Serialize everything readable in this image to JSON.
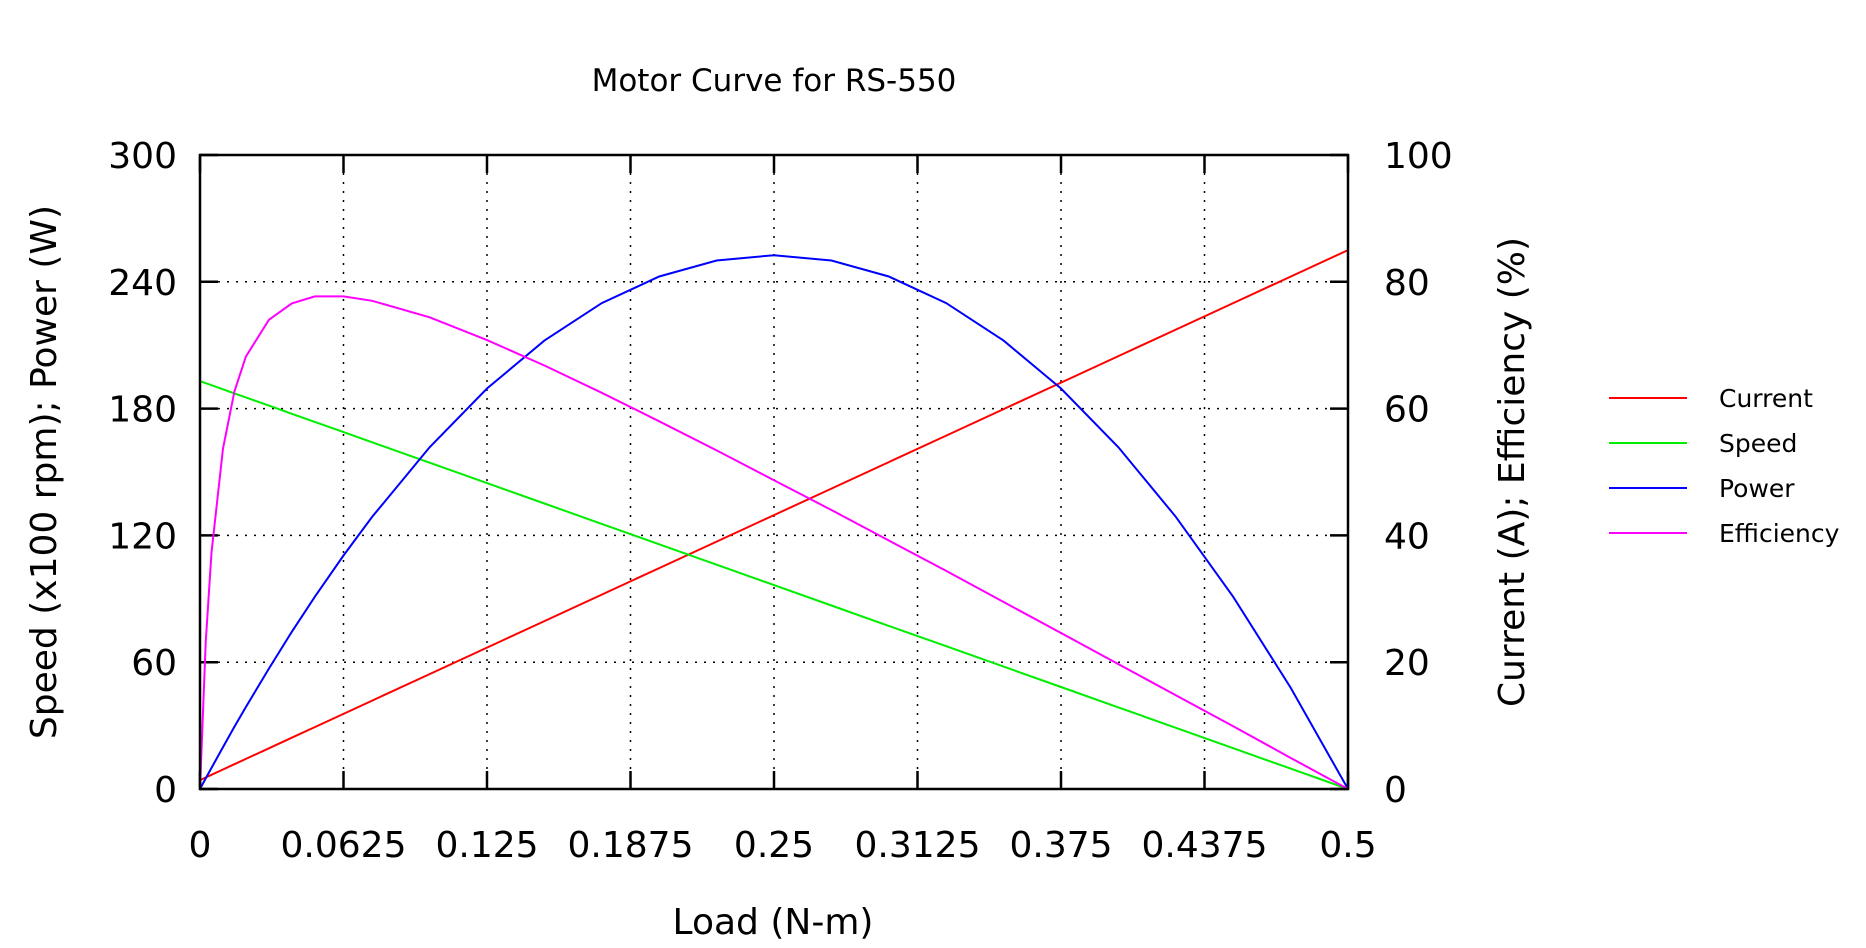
{
  "chart_data": {
    "type": "line",
    "title": "Motor Curve for RS-550",
    "xlabel": "Load (N-m)",
    "ylabel": "Speed (x100 rpm); Power (W)",
    "y2label": "Current (A); Efficiency (%)",
    "xlim": [
      0,
      0.5
    ],
    "ylim": [
      0,
      300
    ],
    "y2lim": [
      0,
      100
    ],
    "grid": true,
    "legend_position": "right",
    "x_ticks": [
      "0",
      "0.0625",
      "0.125",
      "0.1875",
      "0.25",
      "0.3125",
      "0.375",
      "0.4375",
      "0.5"
    ],
    "y_ticks": [
      "0",
      "60",
      "120",
      "180",
      "240",
      "300"
    ],
    "y2_ticks": [
      "0",
      "20",
      "40",
      "60",
      "80",
      "100"
    ],
    "x": [
      0,
      0.0025,
      0.005,
      0.01,
      0.015,
      0.02,
      0.03,
      0.04,
      0.05,
      0.0625,
      0.075,
      0.1,
      0.125,
      0.15,
      0.175,
      0.2,
      0.225,
      0.25,
      0.275,
      0.3,
      0.325,
      0.35,
      0.375,
      0.4,
      0.425,
      0.45,
      0.475,
      0.5
    ],
    "series": [
      {
        "name": "Current",
        "axis": "y2",
        "color": "#ff0000",
        "values": [
          1.4,
          1.82,
          2.24,
          3.07,
          3.91,
          4.74,
          6.42,
          8.09,
          9.76,
          11.85,
          13.94,
          18.12,
          22.3,
          26.48,
          30.66,
          34.84,
          39.02,
          43.2,
          47.38,
          51.56,
          55.74,
          59.92,
          64.1,
          68.28,
          72.46,
          76.64,
          80.82,
          85.0
        ]
      },
      {
        "name": "Speed",
        "axis": "y",
        "color": "#00ee00",
        "values": [
          193,
          192.04,
          191.07,
          189.14,
          187.21,
          185.28,
          181.42,
          177.56,
          173.7,
          168.88,
          164.05,
          154.4,
          144.75,
          135.1,
          125.45,
          115.8,
          106.15,
          96.5,
          86.85,
          77.2,
          67.55,
          57.9,
          48.25,
          38.6,
          28.95,
          19.3,
          9.65,
          0
        ]
      },
      {
        "name": "Power",
        "axis": "y",
        "color": "#0000ff",
        "values": [
          0,
          5.03,
          10.0,
          19.81,
          29.41,
          38.8,
          56.99,
          74.38,
          90.95,
          110.5,
          128.8,
          161.7,
          189.5,
          212.2,
          229.9,
          242.5,
          250.1,
          252.6,
          250.1,
          242.5,
          229.9,
          212.2,
          189.5,
          161.7,
          128.8,
          90.95,
          48.0,
          0
        ]
      },
      {
        "name": "Efficiency",
        "axis": "y2",
        "color": "#ff00ff",
        "values": [
          0,
          23.1,
          37.3,
          53.7,
          62.7,
          68.2,
          74.0,
          76.6,
          77.7,
          77.7,
          77.0,
          74.4,
          70.8,
          66.8,
          62.5,
          58.0,
          53.4,
          48.7,
          44.0,
          39.2,
          34.4,
          29.5,
          24.6,
          19.7,
          14.8,
          9.9,
          4.9,
          0
        ]
      }
    ]
  }
}
